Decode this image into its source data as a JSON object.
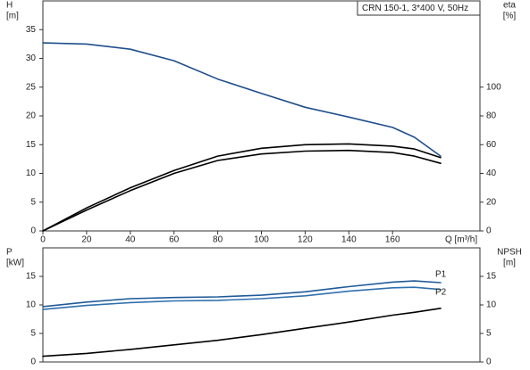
{
  "chart_data": [
    {
      "type": "line",
      "title": "CRN 150-1, 3*400 V, 50Hz",
      "ylabel": [
        "H",
        "[m]"
      ],
      "y2label": [
        "eta",
        "[%]"
      ],
      "xlabel": "Q [m³/h]",
      "x": [
        0,
        20,
        40,
        60,
        80,
        100,
        120,
        140,
        160,
        170,
        182
      ],
      "xlim": [
        0,
        200
      ],
      "xticks": [
        0,
        20,
        40,
        60,
        80,
        100,
        120,
        140,
        160
      ],
      "ylim": [
        0,
        40
      ],
      "yticks": [
        0,
        5,
        10,
        15,
        20,
        25,
        30,
        35
      ],
      "y2lim": [
        0,
        160
      ],
      "y2ticks": [
        0,
        20,
        40,
        60,
        80,
        100
      ],
      "series": [
        {
          "color": "#1f4e8c",
          "values": [
            32.7,
            32.5,
            31.6,
            29.6,
            26.4,
            23.9,
            21.5,
            19.8,
            18.0,
            16.3,
            13.0
          ]
        },
        {
          "color": "#000000",
          "axis": "y2",
          "values": [
            0,
            16,
            30,
            42,
            52,
            57.5,
            60,
            60.5,
            59,
            57,
            51
          ]
        },
        {
          "color": "#000000",
          "axis": "y2",
          "values": [
            0,
            14.5,
            28,
            40,
            49,
            53.5,
            55.5,
            56,
            54.5,
            52,
            47
          ]
        }
      ]
    },
    {
      "type": "line",
      "ylabel": [
        "P",
        "[kW]"
      ],
      "y2label": [
        "NPSH",
        "[m]"
      ],
      "x": [
        0,
        20,
        40,
        60,
        80,
        100,
        120,
        140,
        160,
        170,
        182
      ],
      "xlim": [
        0,
        200
      ],
      "ylim": [
        0,
        20
      ],
      "yticks": [
        0,
        5,
        10,
        15
      ],
      "y2lim": [
        0,
        20
      ],
      "y2ticks": [
        0,
        5,
        10,
        15
      ],
      "series": [
        {
          "name": "P1",
          "color": "#1f5a9a",
          "values": [
            9.7,
            10.5,
            11.1,
            11.3,
            11.4,
            11.7,
            12.3,
            13.2,
            14.0,
            14.2,
            13.9
          ]
        },
        {
          "name": "P2",
          "color": "#2f6fae",
          "values": [
            9.2,
            9.9,
            10.4,
            10.7,
            10.8,
            11.1,
            11.6,
            12.4,
            13.0,
            13.1,
            12.7
          ]
        },
        {
          "color": "#000000",
          "axis": "y2",
          "values": [
            1.0,
            1.5,
            2.2,
            3.0,
            3.8,
            4.8,
            5.9,
            7.0,
            8.2,
            8.7,
            9.4
          ]
        }
      ]
    }
  ]
}
